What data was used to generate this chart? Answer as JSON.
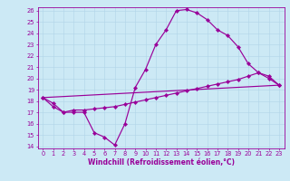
{
  "xlabel": "Windchill (Refroidissement éolien,°C)",
  "bg_color": "#cce9f5",
  "line_color": "#990099",
  "grid_color": "#b0d4e8",
  "xlim": [
    -0.5,
    23.5
  ],
  "ylim": [
    13.8,
    26.3
  ],
  "yticks": [
    14,
    15,
    16,
    17,
    18,
    19,
    20,
    21,
    22,
    23,
    24,
    25,
    26
  ],
  "xticks": [
    0,
    1,
    2,
    3,
    4,
    5,
    6,
    7,
    8,
    9,
    10,
    11,
    12,
    13,
    14,
    15,
    16,
    17,
    18,
    19,
    20,
    21,
    22,
    23
  ],
  "curve1_x": [
    0,
    1,
    2,
    3,
    4,
    5,
    6,
    7,
    8,
    9,
    10,
    11,
    12,
    13,
    14,
    15,
    16,
    17,
    18,
    19,
    20,
    21,
    22,
    23
  ],
  "curve1_y": [
    18.3,
    17.8,
    17.0,
    17.0,
    17.0,
    15.2,
    14.8,
    14.1,
    16.0,
    19.2,
    20.8,
    23.0,
    24.3,
    26.0,
    26.1,
    25.8,
    25.2,
    24.3,
    23.8,
    22.8,
    21.3,
    20.5,
    20.2,
    19.4
  ],
  "curve2_x": [
    0,
    1,
    2,
    3,
    4,
    5,
    6,
    7,
    8,
    9,
    10,
    11,
    12,
    13,
    14,
    15,
    16,
    17,
    18,
    19,
    20,
    21,
    22,
    23
  ],
  "curve2_y": [
    18.3,
    17.5,
    17.0,
    17.2,
    17.2,
    17.3,
    17.4,
    17.5,
    17.7,
    17.9,
    18.1,
    18.3,
    18.5,
    18.7,
    18.9,
    19.1,
    19.3,
    19.5,
    19.7,
    19.9,
    20.2,
    20.5,
    20.0,
    19.4
  ],
  "curve3_x": [
    0,
    23
  ],
  "curve3_y": [
    18.3,
    19.4
  ],
  "xlabel_fontsize": 5.5,
  "tick_fontsize": 4.8,
  "marker_size": 2.2,
  "line_width": 0.85
}
